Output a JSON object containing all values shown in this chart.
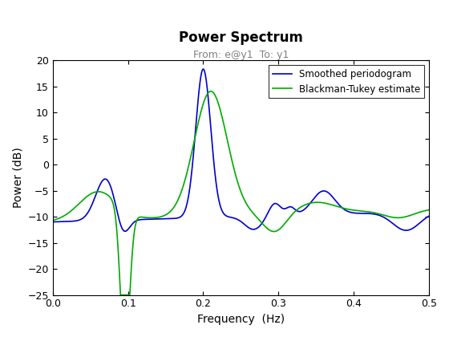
{
  "title": "Power Spectrum",
  "subtitle": "From: e@y1  To: y1",
  "xlabel": "Frequency  (Hz)",
  "ylabel": "Power (dB)",
  "xlim": [
    0,
    0.5
  ],
  "ylim": [
    -25,
    20
  ],
  "yticks": [
    -25,
    -20,
    -15,
    -10,
    -5,
    0,
    5,
    10,
    15,
    20
  ],
  "xticks": [
    0,
    0.1,
    0.2,
    0.3,
    0.4,
    0.5
  ],
  "line1_color": "#0000cc",
  "line2_color": "#00aa00",
  "legend": [
    "Smoothed periodogram",
    "Blackman-Tukey estimate"
  ],
  "background_color": "#ffffff",
  "title_fontsize": 12,
  "subtitle_fontsize": 9,
  "label_fontsize": 10
}
